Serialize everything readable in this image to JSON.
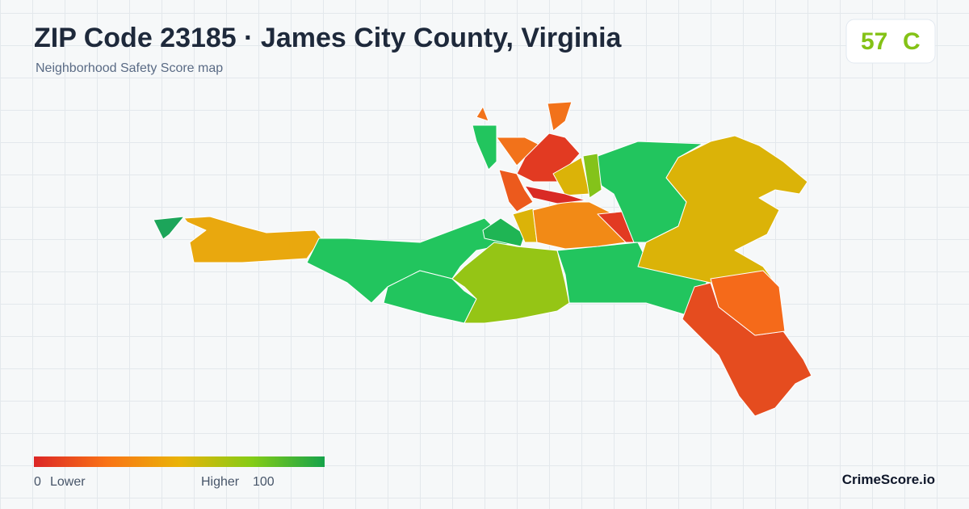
{
  "header": {
    "title": "ZIP Code 23185 · James City County, Virginia",
    "subtitle": "Neighborhood Safety Score map"
  },
  "score": {
    "value": 57,
    "grade": "C"
  },
  "legend": {
    "min": 0,
    "min_label": "Lower",
    "max_label": "Higher",
    "max": 100
  },
  "footer": {
    "brand": "CrimeScore.io"
  }
}
